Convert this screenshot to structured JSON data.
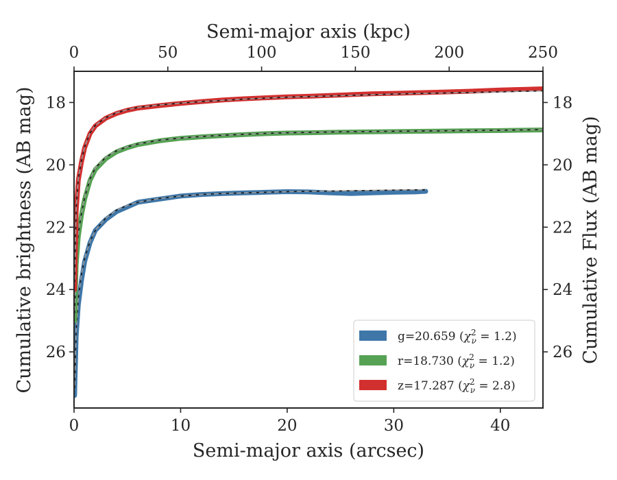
{
  "chart_data": {
    "type": "line",
    "xlabel": "Semi-major axis (arcsec)",
    "top_xlabel": "Semi-major axis (kpc)",
    "ylabel": "Cumulative brightness (AB mag)",
    "right_ylabel": "Cumulative Flux (AB mag)",
    "xlim": [
      0,
      44
    ],
    "top_xlim": [
      0,
      250
    ],
    "ylim": [
      27.8,
      17.0
    ],
    "y_inverted": true,
    "x_ticks": [
      0,
      10,
      20,
      30,
      40
    ],
    "top_x_ticks": [
      0,
      50,
      100,
      150,
      200,
      250
    ],
    "y_ticks": [
      18,
      20,
      22,
      24,
      26
    ],
    "grid": false,
    "legend_position": "lower-right",
    "colors": {
      "g": "#3f77a9",
      "r": "#56a254",
      "z": "#d2302f"
    },
    "series": [
      {
        "name": "g=20.659 (χ²ν = 1.2)",
        "legend": {
          "prefix": "g=20.659 (",
          "chi": "χ",
          "sub": "ν",
          "sup": "2",
          "suffix": " = 1.2)"
        },
        "color": "#3f77a9",
        "x": [
          0.05,
          0.2,
          0.4,
          0.7,
          1.0,
          1.5,
          2.0,
          3.0,
          4.0,
          5.0,
          6.0,
          8.0,
          10.0,
          12.0,
          14.0,
          16.0,
          18.0,
          20.0,
          22.0,
          24.0,
          26.0,
          28.0,
          30.0,
          32.0,
          33.0
        ],
        "y": [
          27.4,
          25.5,
          24.5,
          23.7,
          23.1,
          22.5,
          22.1,
          21.75,
          21.5,
          21.35,
          21.2,
          21.1,
          21.0,
          20.95,
          20.92,
          20.9,
          20.88,
          20.86,
          20.87,
          20.9,
          20.92,
          20.9,
          20.88,
          20.87,
          20.85
        ],
        "model_y": [
          27.2,
          25.3,
          24.3,
          23.5,
          23.0,
          22.45,
          22.1,
          21.7,
          21.45,
          21.3,
          21.2,
          21.08,
          21.0,
          20.95,
          20.92,
          20.9,
          20.88,
          20.86,
          20.85,
          20.84,
          20.83,
          20.82,
          20.81,
          20.8,
          20.8
        ]
      },
      {
        "name": "r=18.730 (χ²ν = 1.2)",
        "legend": {
          "prefix": "r=18.730 (",
          "chi": "χ",
          "sub": "ν",
          "sup": "2",
          "suffix": " = 1.2)"
        },
        "color": "#56a254",
        "x": [
          0.05,
          0.2,
          0.4,
          0.7,
          1.0,
          1.5,
          2.0,
          3.0,
          4.0,
          5.0,
          6.0,
          8.0,
          10.0,
          12.0,
          14.0,
          16.0,
          18.0,
          20.0,
          22.0,
          25.0,
          28.0,
          31.0,
          34.0,
          37.0,
          40.0,
          42.0,
          44.0
        ],
        "y": [
          25.0,
          23.2,
          22.3,
          21.6,
          21.1,
          20.5,
          20.15,
          19.8,
          19.58,
          19.45,
          19.35,
          19.23,
          19.15,
          19.1,
          19.06,
          19.03,
          19.0,
          18.98,
          18.97,
          18.95,
          18.94,
          18.93,
          18.92,
          18.91,
          18.9,
          18.89,
          18.88
        ],
        "model_y": [
          24.8,
          23.0,
          22.2,
          21.55,
          21.05,
          20.45,
          20.1,
          19.75,
          19.55,
          19.42,
          19.33,
          19.21,
          19.14,
          19.09,
          19.05,
          19.02,
          18.99,
          18.97,
          18.96,
          18.94,
          18.93,
          18.92,
          18.91,
          18.9,
          18.89,
          18.88,
          18.87
        ]
      },
      {
        "name": "z=17.287 (χ²ν = 2.8)",
        "legend": {
          "prefix": "z=17.287 (",
          "chi": "χ",
          "sub": "ν",
          "sup": "2",
          "suffix": " = 2.8)"
        },
        "color": "#d2302f",
        "x": [
          0.05,
          0.2,
          0.4,
          0.7,
          1.0,
          1.5,
          2.0,
          3.0,
          4.0,
          5.0,
          6.0,
          8.0,
          10.0,
          12.0,
          14.0,
          16.0,
          18.0,
          20.0,
          22.0,
          25.0,
          28.0,
          31.0,
          34.0,
          37.0,
          40.0,
          42.0,
          44.0
        ],
        "y": [
          24.0,
          21.5,
          20.5,
          19.9,
          19.45,
          19.0,
          18.75,
          18.5,
          18.35,
          18.25,
          18.18,
          18.1,
          18.03,
          17.97,
          17.92,
          17.88,
          17.85,
          17.82,
          17.8,
          17.76,
          17.72,
          17.7,
          17.67,
          17.64,
          17.6,
          17.58,
          17.56
        ],
        "model_y": [
          23.8,
          21.4,
          20.45,
          19.85,
          19.42,
          18.98,
          18.73,
          18.48,
          18.33,
          18.23,
          18.16,
          18.08,
          18.02,
          17.97,
          17.93,
          17.89,
          17.86,
          17.83,
          17.81,
          17.78,
          17.75,
          17.72,
          17.7,
          17.68,
          17.66,
          17.64,
          17.63
        ]
      }
    ]
  }
}
